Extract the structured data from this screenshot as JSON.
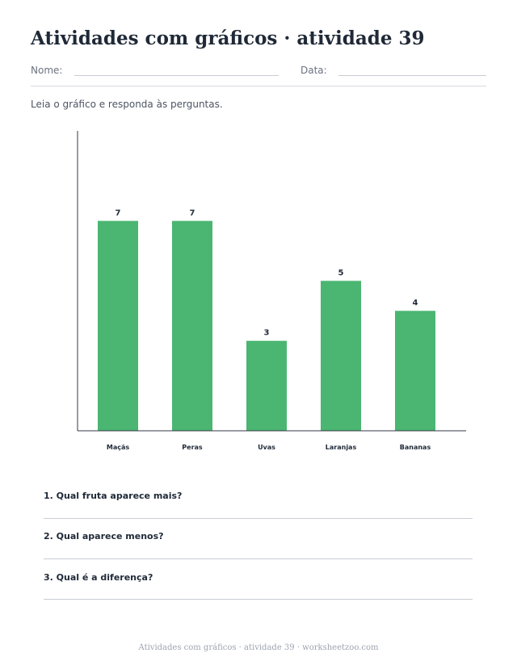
{
  "title": "Atividades com gráficos · atividade 39",
  "fields": {
    "name_label": "Nome:",
    "date_label": "Data:"
  },
  "instructions": "Leia o gráfico e responda às perguntas.",
  "colors": {
    "bar": "#4ab671",
    "text": "#1f2937",
    "muted": "#6b7280"
  },
  "chart_data": {
    "type": "bar",
    "categories": [
      "Maçãs",
      "Peras",
      "Uvas",
      "Laranjas",
      "Bananas"
    ],
    "values": [
      7,
      7,
      3,
      5,
      4
    ],
    "title": "",
    "xlabel": "",
    "ylabel": "",
    "ylim": [
      0,
      10
    ],
    "grid": false,
    "data_labels": true
  },
  "questions": [
    {
      "text": "1. Qual fruta aparece mais?"
    },
    {
      "text": "2. Qual aparece menos?"
    },
    {
      "text": "3. Qual é a diferença?"
    }
  ],
  "footer": "Atividades com gráficos · atividade 39 · worksheetzoo.com"
}
